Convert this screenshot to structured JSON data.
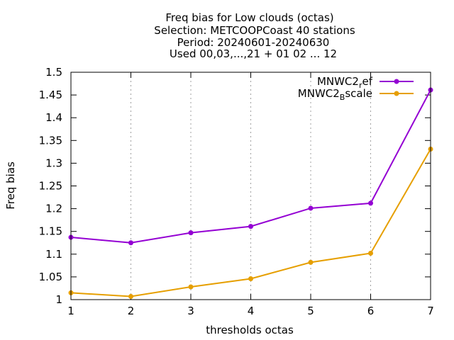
{
  "chart_data": {
    "type": "line",
    "title_lines": [
      "Freq bias  for Low clouds (octas)",
      "Selection: METCOOPCoast     40 stations",
      "Period: 20240601-20240630",
      "Used 00,03,...,21 + 01 02 ... 12"
    ],
    "xlabel": "thresholds octas",
    "ylabel": "Freq bias",
    "x": [
      1,
      2,
      3,
      4,
      5,
      6,
      7
    ],
    "xlim": [
      1,
      7
    ],
    "ylim": [
      1,
      1.5
    ],
    "yticks": [
      "1",
      "1.05",
      "1.1",
      "1.15",
      "1.2",
      "1.25",
      "1.3",
      "1.35",
      "1.4",
      "1.45",
      "1.5"
    ],
    "xticks": [
      "1",
      "2",
      "3",
      "4",
      "5",
      "6",
      "7"
    ],
    "grid": "vertical dotted",
    "legend_position": "top-right",
    "series": [
      {
        "legend_main": "MNWC2",
        "legend_sub": "r",
        "legend_rest": "ef",
        "color": "#9400d3",
        "values": [
          1.137,
          1.125,
          1.147,
          1.161,
          1.201,
          1.212,
          1.461
        ]
      },
      {
        "legend_main": "MNWC2",
        "legend_sub": "B",
        "legend_rest": "scale",
        "color": "#e69f00",
        "values": [
          1.015,
          1.007,
          1.028,
          1.046,
          1.082,
          1.102,
          1.331
        ]
      }
    ]
  }
}
